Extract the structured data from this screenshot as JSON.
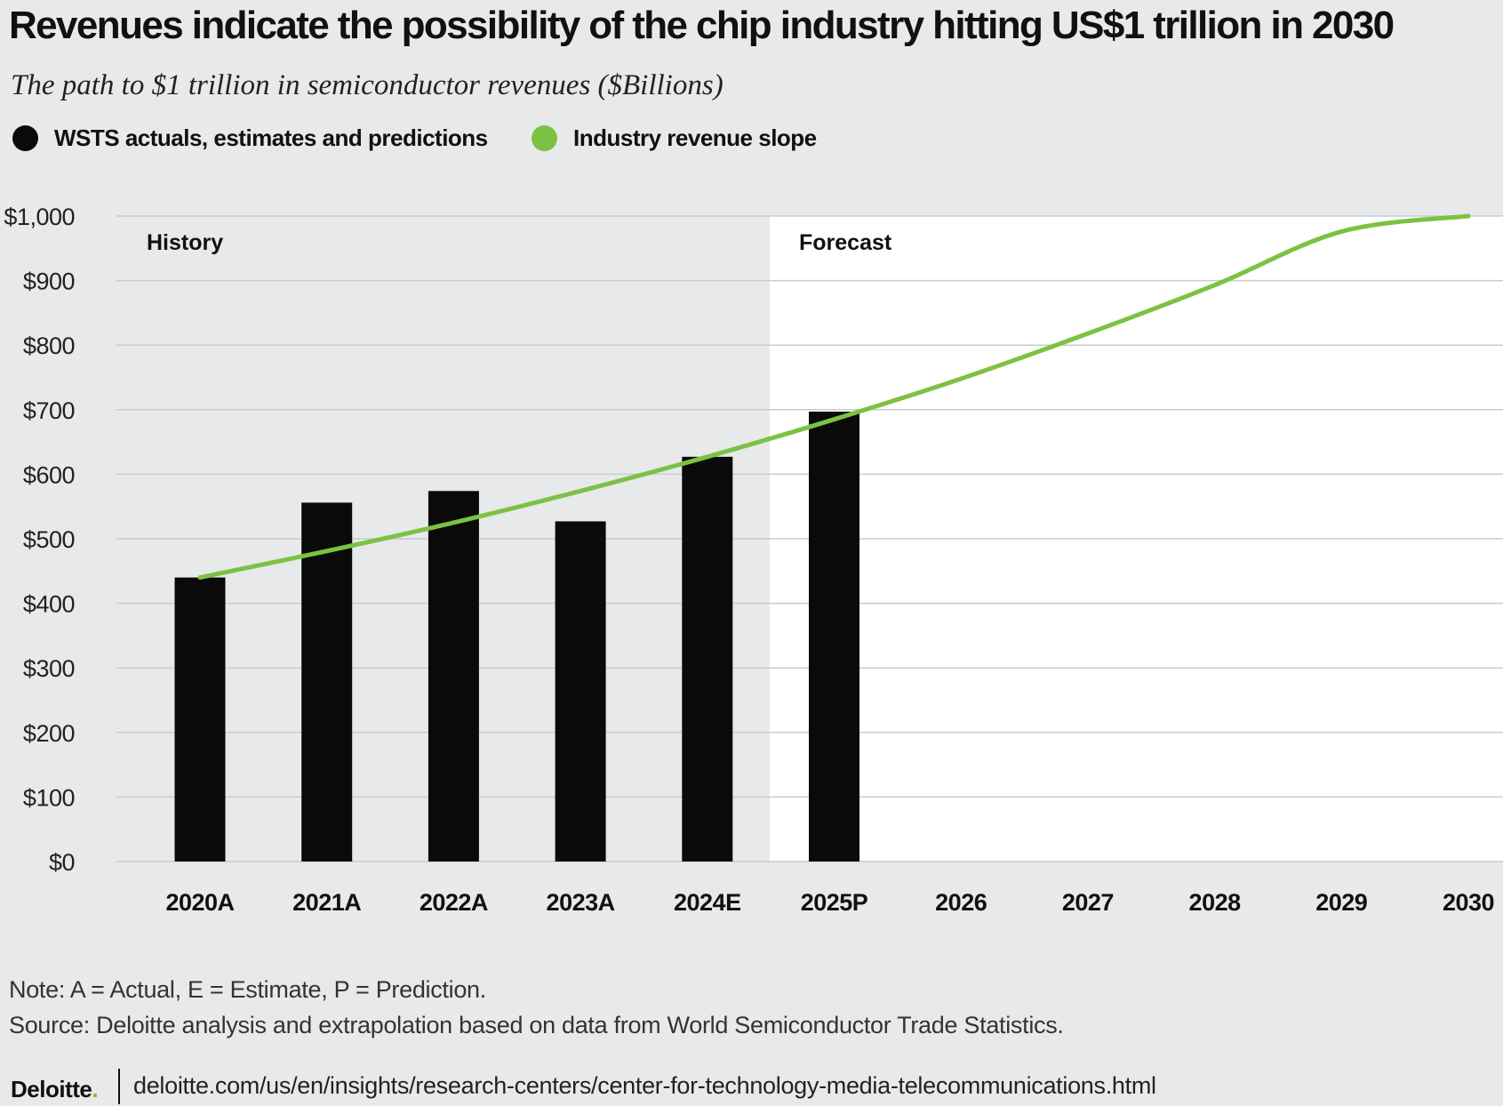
{
  "title": "Revenues indicate the possibility of the chip industry hitting US$1 trillion in 2030",
  "subtitle": "The path to $1 trillion in semiconductor revenues ($Billions)",
  "legend": [
    {
      "label": "WSTS actuals, estimates and predictions",
      "color": "#0a0a0a"
    },
    {
      "label": "Industry revenue slope",
      "color": "#7cc242"
    }
  ],
  "regions": {
    "history_label": "History",
    "forecast_label": "Forecast"
  },
  "chart_data": {
    "type": "bar",
    "categories": [
      "2020A",
      "2021A",
      "2022A",
      "2023A",
      "2024E",
      "2025P",
      "2026",
      "2027",
      "2028",
      "2029",
      "2030"
    ],
    "series": [
      {
        "name": "WSTS actuals, estimates and predictions",
        "type": "bar",
        "color": "#0a0a0a",
        "values": [
          440,
          556,
          574,
          527,
          627,
          697,
          null,
          null,
          null,
          null,
          null
        ]
      },
      {
        "name": "Industry revenue slope",
        "type": "line",
        "color": "#7cc242",
        "values": [
          440,
          481,
          525,
          574,
          627,
          685,
          748,
          818,
          893,
          976,
          1000
        ]
      }
    ],
    "ylim": [
      0,
      1000
    ],
    "yticks": [
      0,
      100,
      200,
      300,
      400,
      500,
      600,
      700,
      800,
      900,
      1000
    ],
    "ytick_labels": [
      "$0",
      "$100",
      "$200",
      "$300",
      "$400",
      "$500",
      "$600",
      "$700",
      "$800",
      "$900",
      "$1,000"
    ],
    "grid": true,
    "legend_position": "top-left"
  },
  "notes": {
    "note": "Note: A = Actual, E = Estimate, P = Prediction.",
    "source": "Source: Deloitte analysis and extrapolation based on data from World Semiconductor Trade Statistics."
  },
  "footer": {
    "brand": "Deloitte",
    "brand_dot": ".",
    "url": "deloitte.com/us/en/insights/research-centers/center-for-technology-media-telecommunications.html"
  }
}
